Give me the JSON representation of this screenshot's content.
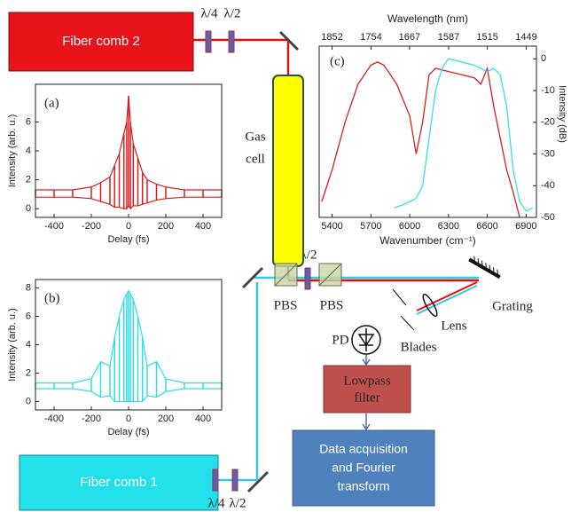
{
  "diagram": {
    "fiber_comb_2": "Fiber comb 2",
    "fiber_comb_1": "Fiber comb 1",
    "top_waveplates": [
      "λ/4",
      "λ/2"
    ],
    "bottom_waveplates": [
      "λ/4",
      "λ/2"
    ],
    "gas_cell": [
      "Gas",
      "cell"
    ],
    "center_waveplate": "λ/2",
    "pbs": [
      "PBS",
      "PBS"
    ],
    "grating": "Grating",
    "lens": "Lens",
    "blades": "Blades",
    "pd": "PD",
    "lowpass": [
      "Lowpass",
      "filter"
    ],
    "daq": [
      "Data acquisition",
      "and Fourier",
      "transform"
    ]
  },
  "chart_data": [
    {
      "type": "line",
      "panel_label": "(a)",
      "xlabel": "Delay (fs)",
      "ylabel": "Intensity (arb. u.)",
      "x": [
        -500,
        -400,
        -300,
        -200,
        -150,
        -100,
        -75,
        -50,
        -25,
        -10,
        0,
        10,
        25,
        50,
        75,
        100,
        150,
        200,
        300,
        400,
        500
      ],
      "series": [
        {
          "color": "#d42020",
          "values": [
            1.3,
            1.3,
            1.3,
            1.5,
            1.8,
            2.2,
            3,
            3.8,
            5.2,
            6,
            7.8,
            6,
            4.5,
            3.5,
            2.5,
            2,
            1.7,
            1.5,
            1.3,
            1.3,
            1.3
          ]
        },
        {
          "color": "#d42020",
          "values": [
            0.8,
            0.8,
            0.8,
            0.7,
            0.5,
            0.3,
            0.1,
            0.1,
            0,
            0,
            0.2,
            0,
            0.2,
            0.2,
            0.3,
            0.4,
            0.6,
            0.7,
            0.8,
            0.8,
            0.8
          ]
        }
      ],
      "xlim": [
        -500,
        500
      ],
      "xticks": [
        -400,
        -200,
        0,
        200,
        400
      ],
      "ylim": [
        -0.6,
        8.6
      ],
      "yticks": [
        0,
        2,
        4,
        6
      ]
    },
    {
      "type": "line",
      "panel_label": "(b)",
      "xlabel": "Delay (fs)",
      "ylabel": "Intensity (arb. u.)",
      "x": [
        -500,
        -400,
        -300,
        -200,
        -150,
        -100,
        -75,
        -50,
        -25,
        -10,
        0,
        10,
        25,
        50,
        75,
        100,
        150,
        200,
        300,
        400,
        500
      ],
      "series": [
        {
          "color": "#33dde6",
          "values": [
            1.3,
            1.3,
            1.3,
            1.6,
            2.8,
            2.5,
            4.5,
            6,
            7.2,
            7.6,
            7.8,
            7.6,
            7.2,
            6,
            4.5,
            2.5,
            2.8,
            1.6,
            1.3,
            1.3,
            1.3
          ]
        },
        {
          "color": "#33dde6",
          "values": [
            0.9,
            0.9,
            0.9,
            0.7,
            0.3,
            0.4,
            0,
            0,
            0,
            0,
            0,
            0,
            0,
            0,
            0,
            0.4,
            0.3,
            0.7,
            0.9,
            0.9,
            0.9
          ]
        }
      ],
      "xlim": [
        -500,
        500
      ],
      "xticks": [
        -400,
        -200,
        0,
        200,
        400
      ],
      "ylim": [
        -0.6,
        8.6
      ],
      "yticks": [
        0,
        2,
        4,
        6,
        8
      ]
    },
    {
      "type": "spectrum",
      "panel_label": "(c)",
      "xlabel": "Wavenumber (cm⁻¹)",
      "x2label": "Wavelength (nm)",
      "y2label": "Intensity (dB)",
      "series": [
        {
          "color": "#d42020",
          "axis": "y2",
          "x": [
            5320,
            5400,
            5500,
            5600,
            5700,
            5750,
            5800,
            5900,
            6000,
            6050,
            6100,
            6150,
            6200,
            6300,
            6400,
            6500,
            6550,
            6600,
            6650,
            6700,
            6750,
            6800,
            6850
          ],
          "values": [
            -45,
            -35,
            -20,
            -8,
            -2,
            -1,
            -2,
            -8,
            -18,
            -30,
            -20,
            -5,
            -3,
            -4,
            -5,
            -6,
            -8,
            -3,
            -15,
            -25,
            -35,
            -42,
            -50
          ]
        },
        {
          "color": "#33e0e8",
          "axis": "y2",
          "x": [
            5880,
            5950,
            6000,
            6050,
            6100,
            6150,
            6200,
            6250,
            6300,
            6400,
            6500,
            6550,
            6600,
            6650,
            6700,
            6750,
            6800,
            6850,
            6900,
            6950
          ],
          "values": [
            -47,
            -46,
            -45,
            -44,
            -40,
            -25,
            -10,
            -3,
            0,
            -1,
            -2,
            -3,
            -4,
            -3,
            -5,
            -15,
            -35,
            -45,
            -48,
            -47
          ]
        }
      ],
      "xlim": [
        5300,
        6980
      ],
      "xticks": [
        5400,
        5700,
        6000,
        6300,
        6600,
        6900
      ],
      "x2ticks": [
        1852,
        1754,
        1667,
        1587,
        1515,
        1449
      ],
      "y2lim": [
        -50,
        4
      ],
      "y2ticks": [
        0,
        -10,
        -20,
        -30,
        -40,
        -50
      ]
    }
  ]
}
